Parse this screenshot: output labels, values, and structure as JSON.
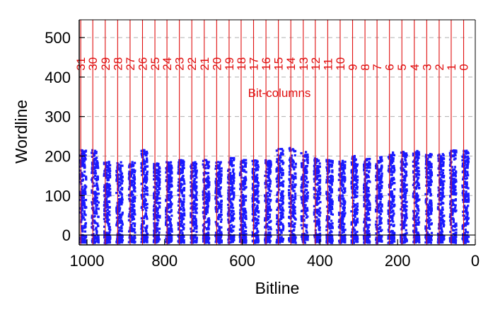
{
  "chart_data": {
    "type": "scatter",
    "title": "",
    "xlabel": "Bitline",
    "ylabel": "Wordline",
    "xlim": [
      1020,
      0
    ],
    "ylim": [
      -25,
      545
    ],
    "x_reversed": true,
    "x_ticks": [
      1000,
      800,
      600,
      400,
      200,
      0
    ],
    "x_tick_labels": [
      "1000",
      "800",
      "600",
      "400",
      "200",
      "0"
    ],
    "y_ticks": [
      0,
      100,
      200,
      300,
      400,
      500
    ],
    "y_tick_labels": [
      "0",
      "100",
      "200",
      "300",
      "400",
      "500"
    ],
    "grid": "horizontal-dashed",
    "annotation": "Bit-columns",
    "colors": {
      "points": "#1a1aff",
      "columns": "#e01010",
      "axes": "#000000",
      "grid": "#b0b0b0"
    },
    "bit_columns": [
      {
        "label": "31",
        "bitline": 1016
      },
      {
        "label": "30",
        "bitline": 985
      },
      {
        "label": "29",
        "bitline": 953
      },
      {
        "label": "28",
        "bitline": 921
      },
      {
        "label": "27",
        "bitline": 889
      },
      {
        "label": "26",
        "bitline": 857
      },
      {
        "label": "25",
        "bitline": 825
      },
      {
        "label": "24",
        "bitline": 794
      },
      {
        "label": "23",
        "bitline": 762
      },
      {
        "label": "22",
        "bitline": 730
      },
      {
        "label": "21",
        "bitline": 698
      },
      {
        "label": "20",
        "bitline": 666
      },
      {
        "label": "19",
        "bitline": 634
      },
      {
        "label": "18",
        "bitline": 603
      },
      {
        "label": "17",
        "bitline": 571
      },
      {
        "label": "16",
        "bitline": 539
      },
      {
        "label": "15",
        "bitline": 507
      },
      {
        "label": "14",
        "bitline": 475
      },
      {
        "label": "13",
        "bitline": 443
      },
      {
        "label": "12",
        "bitline": 412
      },
      {
        "label": "11",
        "bitline": 380
      },
      {
        "label": "10",
        "bitline": 348
      },
      {
        "label": "9",
        "bitline": 316
      },
      {
        "label": "8",
        "bitline": 284
      },
      {
        "label": "7",
        "bitline": 253
      },
      {
        "label": "6",
        "bitline": 221
      },
      {
        "label": "5",
        "bitline": 189
      },
      {
        "label": "4",
        "bitline": 157
      },
      {
        "label": "3",
        "bitline": 125
      },
      {
        "label": "2",
        "bitline": 93
      },
      {
        "label": "1",
        "bitline": 62
      },
      {
        "label": "0",
        "bitline": 30
      }
    ],
    "point_clusters": [
      {
        "bitline_from": 1018,
        "bitline_to": 1002,
        "wordline_min": -20,
        "wordline_max": 215
      },
      {
        "bitline_from": 988,
        "bitline_to": 970,
        "wordline_min": -20,
        "wordline_max": 215
      },
      {
        "bitline_from": 956,
        "bitline_to": 940,
        "wordline_min": -20,
        "wordline_max": 190
      },
      {
        "bitline_from": 924,
        "bitline_to": 908,
        "wordline_min": -20,
        "wordline_max": 185
      },
      {
        "bitline_from": 892,
        "bitline_to": 876,
        "wordline_min": -20,
        "wordline_max": 185
      },
      {
        "bitline_from": 860,
        "bitline_to": 844,
        "wordline_min": -20,
        "wordline_max": 215
      },
      {
        "bitline_from": 828,
        "bitline_to": 812,
        "wordline_min": -20,
        "wordline_max": 185
      },
      {
        "bitline_from": 797,
        "bitline_to": 781,
        "wordline_min": -20,
        "wordline_max": 185
      },
      {
        "bitline_from": 765,
        "bitline_to": 749,
        "wordline_min": -20,
        "wordline_max": 190
      },
      {
        "bitline_from": 733,
        "bitline_to": 717,
        "wordline_min": -20,
        "wordline_max": 185
      },
      {
        "bitline_from": 701,
        "bitline_to": 685,
        "wordline_min": -20,
        "wordline_max": 190
      },
      {
        "bitline_from": 669,
        "bitline_to": 653,
        "wordline_min": -20,
        "wordline_max": 185
      },
      {
        "bitline_from": 637,
        "bitline_to": 621,
        "wordline_min": -20,
        "wordline_max": 195
      },
      {
        "bitline_from": 606,
        "bitline_to": 590,
        "wordline_min": -20,
        "wordline_max": 190
      },
      {
        "bitline_from": 574,
        "bitline_to": 558,
        "wordline_min": -20,
        "wordline_max": 190
      },
      {
        "bitline_from": 542,
        "bitline_to": 526,
        "wordline_min": -20,
        "wordline_max": 190
      },
      {
        "bitline_from": 512,
        "bitline_to": 494,
        "wordline_min": -20,
        "wordline_max": 220
      },
      {
        "bitline_from": 480,
        "bitline_to": 462,
        "wordline_min": -20,
        "wordline_max": 222
      },
      {
        "bitline_from": 448,
        "bitline_to": 431,
        "wordline_min": -20,
        "wordline_max": 210
      },
      {
        "bitline_from": 415,
        "bitline_to": 399,
        "wordline_min": -20,
        "wordline_max": 195
      },
      {
        "bitline_from": 383,
        "bitline_to": 367,
        "wordline_min": -20,
        "wordline_max": 190
      },
      {
        "bitline_from": 351,
        "bitline_to": 335,
        "wordline_min": -20,
        "wordline_max": 190
      },
      {
        "bitline_from": 319,
        "bitline_to": 303,
        "wordline_min": -20,
        "wordline_max": 200
      },
      {
        "bitline_from": 287,
        "bitline_to": 271,
        "wordline_min": -20,
        "wordline_max": 195
      },
      {
        "bitline_from": 256,
        "bitline_to": 240,
        "wordline_min": -20,
        "wordline_max": 200
      },
      {
        "bitline_from": 224,
        "bitline_to": 208,
        "wordline_min": -20,
        "wordline_max": 210
      },
      {
        "bitline_from": 192,
        "bitline_to": 176,
        "wordline_min": -20,
        "wordline_max": 215
      },
      {
        "bitline_from": 160,
        "bitline_to": 144,
        "wordline_min": -20,
        "wordline_max": 215
      },
      {
        "bitline_from": 128,
        "bitline_to": 112,
        "wordline_min": -20,
        "wordline_max": 210
      },
      {
        "bitline_from": 96,
        "bitline_to": 80,
        "wordline_min": -20,
        "wordline_max": 205
      },
      {
        "bitline_from": 65,
        "bitline_to": 49,
        "wordline_min": -20,
        "wordline_max": 215
      },
      {
        "bitline_from": 33,
        "bitline_to": 17,
        "wordline_min": -20,
        "wordline_max": 215
      }
    ]
  }
}
